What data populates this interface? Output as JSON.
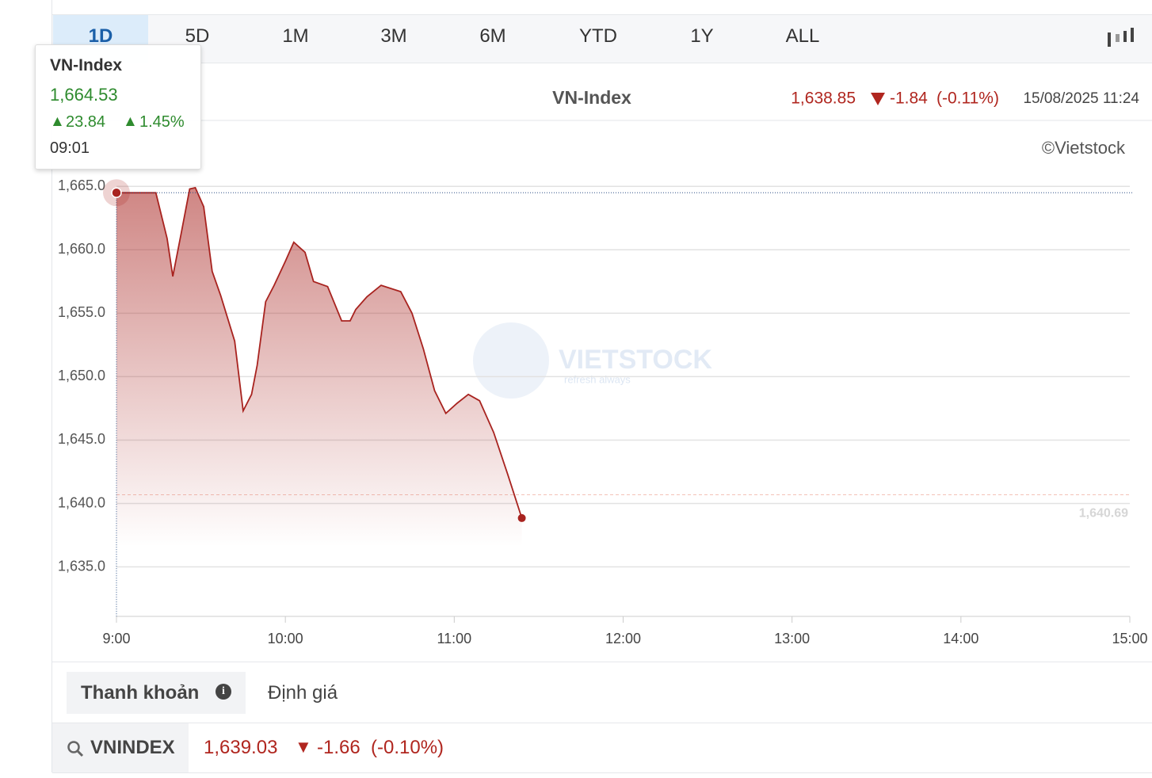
{
  "tabs": [
    "1D",
    "5D",
    "1M",
    "3M",
    "6M",
    "YTD",
    "1Y",
    "ALL"
  ],
  "chart_data": {
    "type": "line",
    "title": "VN-Index",
    "last_value": "1,638.85",
    "change": "-1.84",
    "change_percent": "(-0.11%)",
    "timestamp": "15/08/2025 11:24",
    "credit": "©Vietstock",
    "watermark": "VIETSTOCK",
    "watermark_tagline": "refresh always",
    "reference": {
      "value": 1640.69,
      "label": "1,640.69"
    },
    "xlim": [
      540,
      900
    ],
    "xticks": [
      {
        "value": 540,
        "label": "9:00"
      },
      {
        "value": 600,
        "label": "10:00"
      },
      {
        "value": 660,
        "label": "11:00"
      },
      {
        "value": 720,
        "label": "12:00"
      },
      {
        "value": 780,
        "label": "13:00"
      },
      {
        "value": 840,
        "label": "14:00"
      },
      {
        "value": 900,
        "label": "15:00"
      }
    ],
    "ylim": [
      1631.1,
      1670.2
    ],
    "yticks": [
      {
        "value": 1635,
        "label": "1,635.0"
      },
      {
        "value": 1640,
        "label": "1,640.0"
      },
      {
        "value": 1645,
        "label": "1,645.0"
      },
      {
        "value": 1650,
        "label": "1,650.0"
      },
      {
        "value": 1655,
        "label": "1,655.0"
      },
      {
        "value": 1660,
        "label": "1,660.0"
      },
      {
        "value": 1665,
        "label": "1,665.0"
      }
    ],
    "grid": true,
    "series": [
      {
        "name": "VN-Index",
        "color": "#a8231f",
        "x": [
          540,
          554,
          558,
          560,
          563,
          566,
          568,
          571,
          574,
          577,
          582,
          585,
          588,
          590,
          593,
          596,
          600,
          603,
          607,
          610,
          615,
          620,
          623,
          625,
          629,
          634,
          641,
          645,
          649,
          653,
          657,
          661,
          665,
          669,
          674,
          679,
          684
        ],
        "values": [
          1664.5,
          1664.5,
          1660.9,
          1657.9,
          1661.3,
          1664.8,
          1664.9,
          1663.4,
          1658.3,
          1656.4,
          1652.8,
          1647.3,
          1648.6,
          1650.9,
          1655.9,
          1657.2,
          1659.1,
          1660.6,
          1659.8,
          1657.5,
          1657.1,
          1654.4,
          1654.4,
          1655.3,
          1656.3,
          1657.2,
          1656.7,
          1655.0,
          1652.2,
          1648.9,
          1647.1,
          1647.9,
          1648.6,
          1648.1,
          1645.6,
          1642.3,
          1638.85
        ]
      }
    ],
    "tooltip": {
      "title": "VN-Index",
      "value": "1,664.53",
      "change": "23.84",
      "percent": "1.45%",
      "time": "09:01"
    }
  },
  "bottom_tabs": [
    "Thanh khoản",
    "Định giá"
  ],
  "quote": {
    "symbol": "VNINDEX",
    "price": "1,639.03",
    "change": "-1.66",
    "change_percent": "(-0.10%)"
  }
}
